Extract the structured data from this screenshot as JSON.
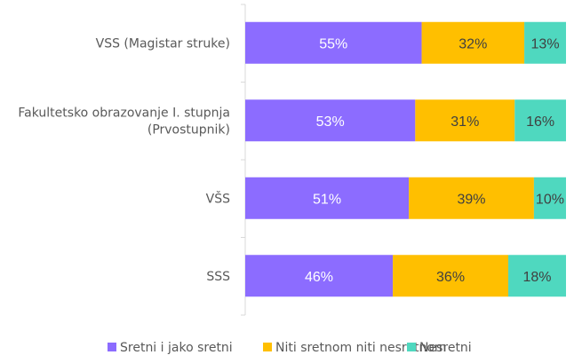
{
  "chart_data": {
    "type": "bar",
    "orientation": "horizontal",
    "stacked": "percent",
    "title": "",
    "xlabel": "",
    "ylabel": "",
    "xlim": [
      0,
      100
    ],
    "grid": false,
    "legend_position": "bottom",
    "categories": [
      [
        "VSS (Magistar struke)"
      ],
      [
        "Fakultetsko obrazovanje I. stupnja",
        "(Prvostupnik)"
      ],
      [
        "VŠS"
      ],
      [
        "SSS"
      ]
    ],
    "series": [
      {
        "name": "Sretni i jako sretni",
        "color": "#8c6cff",
        "label_color": "#ffffff",
        "values": [
          55,
          53,
          51,
          46
        ]
      },
      {
        "name": "Niti sretnom niti nesretnom",
        "color": "#ffbf00",
        "label_color": "#404040",
        "values": [
          32,
          31,
          39,
          36
        ]
      },
      {
        "name": "Nesretni",
        "color": "#4fd8bf",
        "label_color": "#404040",
        "values": [
          13,
          16,
          10,
          18
        ]
      }
    ],
    "value_suffix": "%"
  }
}
